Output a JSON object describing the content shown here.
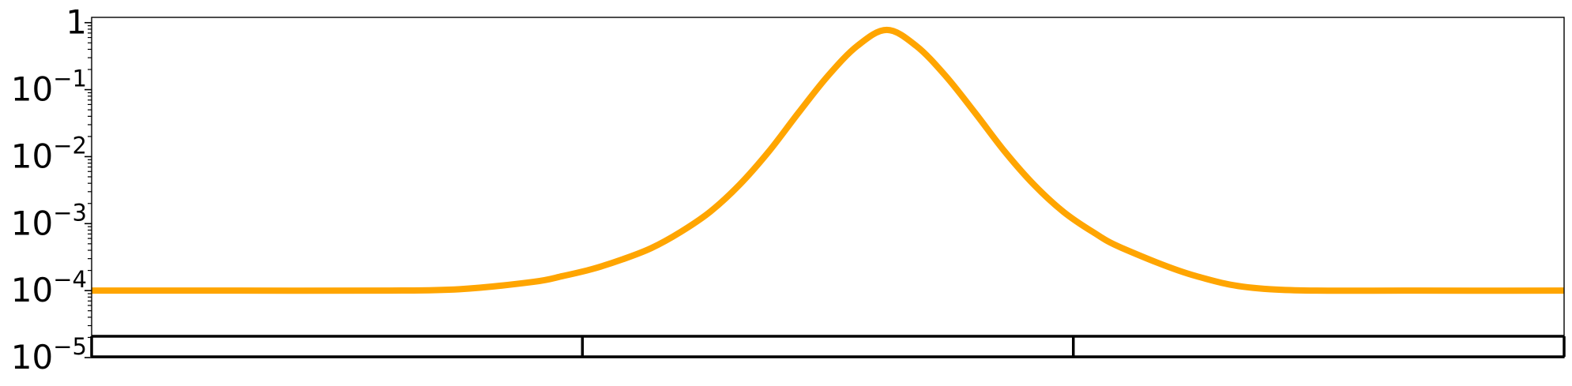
{
  "chart_data": {
    "type": "line",
    "title": "",
    "xlabel": "",
    "ylabel": "",
    "yscale": "log",
    "ylim": [
      1e-05,
      1.2
    ],
    "xlim": [
      0,
      1
    ],
    "y_ticks": [
      {
        "base": "1",
        "exp": ""
      },
      {
        "base": "10",
        "exp": "−1"
      },
      {
        "base": "10",
        "exp": "−2"
      },
      {
        "base": "10",
        "exp": "−3"
      },
      {
        "base": "10",
        "exp": "−4"
      },
      {
        "base": "10",
        "exp": "−5"
      }
    ],
    "series": [
      {
        "color": "#FFA500",
        "x": [
          0,
          0.1,
          0.2,
          0.25,
          0.3,
          0.32,
          0.34,
          0.36,
          0.38,
          0.4,
          0.42,
          0.44,
          0.46,
          0.48,
          0.5,
          0.52,
          0.54,
          0.56,
          0.58,
          0.6,
          0.62,
          0.64,
          0.66,
          0.68,
          0.7,
          0.75,
          0.8,
          0.9,
          1.0
        ],
        "y": [
          0.0001,
          0.0001,
          0.0001,
          0.000105,
          0.000135,
          0.000165,
          0.00021,
          0.00029,
          0.00043,
          0.00075,
          0.0015,
          0.0038,
          0.012,
          0.045,
          0.16,
          0.45,
          0.78,
          0.45,
          0.16,
          0.045,
          0.012,
          0.0038,
          0.0015,
          0.00075,
          0.00043,
          0.000165,
          0.000105,
          0.0001,
          0.0001
        ]
      }
    ],
    "segment_bar": {
      "color": "#000000",
      "dividers": [
        0,
        0.3333,
        0.6667,
        1.0
      ]
    },
    "grid": false,
    "legend": "none"
  }
}
